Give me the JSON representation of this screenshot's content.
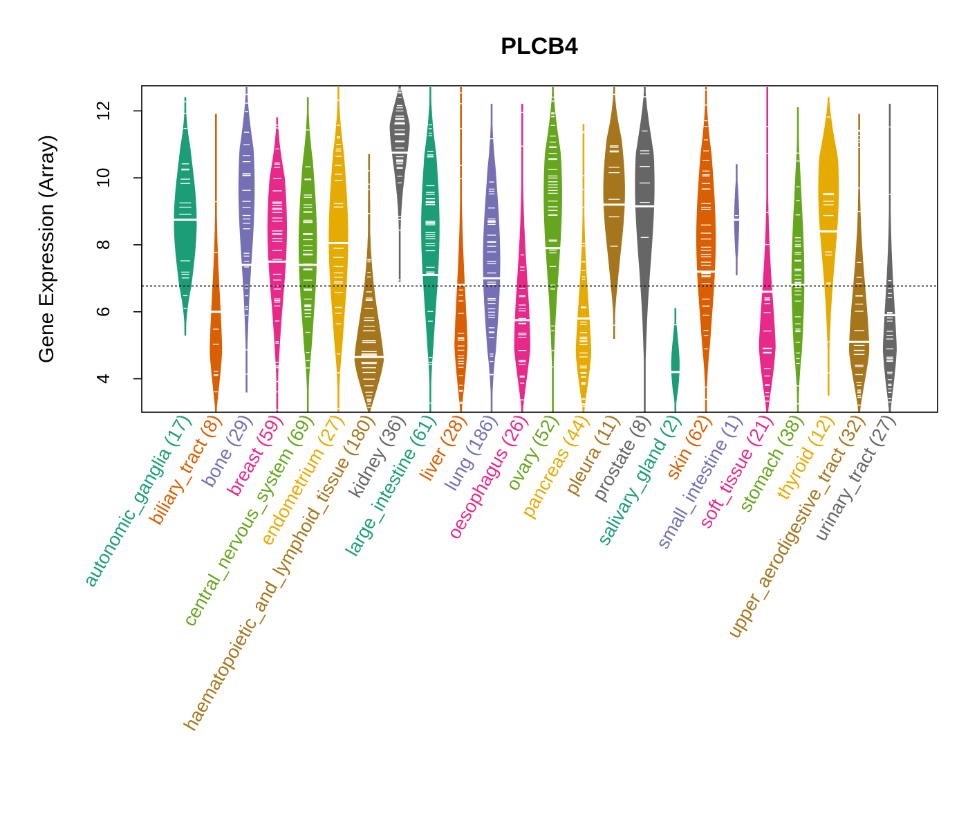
{
  "chart_data": {
    "type": "violin",
    "title": "PLCB4",
    "ylabel": "Gene Expression (Array)",
    "xlabel": "",
    "ylim": [
      3.0,
      12.75
    ],
    "yticks": [
      4,
      6,
      8,
      10,
      12
    ],
    "reference_line": 6.77,
    "categories": [
      {
        "name": "autonomic_ganglia",
        "n": 17,
        "label": "autonomic_ganglia (17)",
        "color": "#1B9E77",
        "min": 5.3,
        "max": 12.4,
        "median": 8.75,
        "peak": 8.7,
        "skew": 1.0
      },
      {
        "name": "biliary_tract",
        "n": 8,
        "label": "biliary_tract (8)",
        "color": "#D95F02",
        "min": 3.0,
        "max": 11.9,
        "median": 6.0,
        "peak": 4.3,
        "skew": 0.55
      },
      {
        "name": "bone",
        "n": 29,
        "label": "bone (29)",
        "color": "#7570B3",
        "min": 3.6,
        "max": 12.7,
        "median": 7.4,
        "peak": 9.7,
        "skew": 0.7
      },
      {
        "name": "breast",
        "n": 59,
        "label": "breast (59)",
        "color": "#E7298A",
        "min": 3.0,
        "max": 11.8,
        "median": 7.5,
        "peak": 8.5,
        "skew": 0.85
      },
      {
        "name": "central_nervous_system",
        "n": 69,
        "label": "central_nervous_system (69)",
        "color": "#66A61E",
        "min": 3.0,
        "max": 12.4,
        "median": 7.4,
        "peak": 8.0,
        "skew": 0.8
      },
      {
        "name": "endometrium",
        "n": 27,
        "label": "endometrium (27)",
        "color": "#E6AB02",
        "min": 3.0,
        "max": 12.7,
        "median": 8.05,
        "peak": 8.2,
        "skew": 0.85
      },
      {
        "name": "haematopoietic_and_lymphoid_tissue",
        "n": 180,
        "label": "haematopoietic_and_lymphoid_tissue (180)",
        "color": "#A6761D",
        "min": 3.0,
        "max": 10.7,
        "median": 4.65,
        "peak": 3.9,
        "skew": 1.4
      },
      {
        "name": "kidney",
        "n": 36,
        "label": "kidney (36)",
        "color": "#666666",
        "min": 6.9,
        "max": 12.75,
        "median": 10.75,
        "peak": 11.8,
        "skew": 0.9
      },
      {
        "name": "large_intestine",
        "n": 61,
        "label": "large_intestine (61)",
        "color": "#1B9E77",
        "min": 3.0,
        "max": 12.7,
        "median": 7.1,
        "peak": 8.5,
        "skew": 0.8
      },
      {
        "name": "liver",
        "n": 28,
        "label": "liver (28)",
        "color": "#D95F02",
        "min": 3.0,
        "max": 12.7,
        "median": 6.8,
        "peak": 4.2,
        "skew": 0.6
      },
      {
        "name": "lung",
        "n": 186,
        "label": "lung (186)",
        "color": "#7570B3",
        "min": 3.0,
        "max": 12.2,
        "median": 7.0,
        "peak": 7.5,
        "skew": 0.75
      },
      {
        "name": "oesophagus",
        "n": 26,
        "label": "oesophagus (26)",
        "color": "#E7298A",
        "min": 3.0,
        "max": 12.2,
        "median": 5.75,
        "peak": 4.8,
        "skew": 0.7
      },
      {
        "name": "ovary",
        "n": 52,
        "label": "ovary (52)",
        "color": "#66A61E",
        "min": 3.0,
        "max": 12.7,
        "median": 7.9,
        "peak": 9.5,
        "skew": 0.8
      },
      {
        "name": "pancreas",
        "n": 44,
        "label": "pancreas (44)",
        "color": "#E6AB02",
        "min": 3.0,
        "max": 11.6,
        "median": 5.8,
        "peak": 4.2,
        "skew": 0.7
      },
      {
        "name": "pleura",
        "n": 11,
        "label": "pleura (11)",
        "color": "#A6761D",
        "min": 5.2,
        "max": 12.7,
        "median": 9.2,
        "peak": 9.6,
        "skew": 0.95
      },
      {
        "name": "prostate",
        "n": 8,
        "label": "prostate (8)",
        "color": "#666666",
        "min": 3.0,
        "max": 12.7,
        "median": 9.15,
        "peak": 9.8,
        "skew": 0.85
      },
      {
        "name": "salivary_gland",
        "n": 2,
        "label": "salivary_gland (2)",
        "color": "#1B9E77",
        "min": 3.0,
        "max": 6.1,
        "median": 4.2,
        "peak": 4.4,
        "skew": 0.35
      },
      {
        "name": "skin",
        "n": 62,
        "label": "skin (62)",
        "color": "#D95F02",
        "min": 3.0,
        "max": 12.7,
        "median": 7.2,
        "peak": 8.2,
        "skew": 0.85
      },
      {
        "name": "small_intestine",
        "n": 1,
        "label": "small_intestine (1)",
        "color": "#7570B3",
        "min": 7.1,
        "max": 10.4,
        "median": 8.75,
        "peak": 8.75,
        "skew": 0.2
      },
      {
        "name": "soft_tissue",
        "n": 21,
        "label": "soft_tissue (21)",
        "color": "#E7298A",
        "min": 3.0,
        "max": 12.7,
        "median": 6.6,
        "peak": 4.0,
        "skew": 0.8
      },
      {
        "name": "stomach",
        "n": 38,
        "label": "stomach (38)",
        "color": "#66A61E",
        "min": 3.0,
        "max": 12.1,
        "median": 6.8,
        "peak": 7.0,
        "skew": 0.55
      },
      {
        "name": "thyroid",
        "n": 12,
        "label": "thyroid (12)",
        "color": "#E6AB02",
        "min": 3.5,
        "max": 12.4,
        "median": 8.4,
        "peak": 9.7,
        "skew": 0.9
      },
      {
        "name": "upper_aerodigestive_tract",
        "n": 32,
        "label": "upper_aerodigestive_tract (32)",
        "color": "#A6761D",
        "min": 3.0,
        "max": 11.9,
        "median": 5.1,
        "peak": 4.5,
        "skew": 0.9
      },
      {
        "name": "urinary_tract",
        "n": 27,
        "label": "urinary_tract (27)",
        "color": "#666666",
        "min": 3.0,
        "max": 12.2,
        "median": 5.9,
        "peak": 4.0,
        "skew": 0.65
      }
    ]
  }
}
